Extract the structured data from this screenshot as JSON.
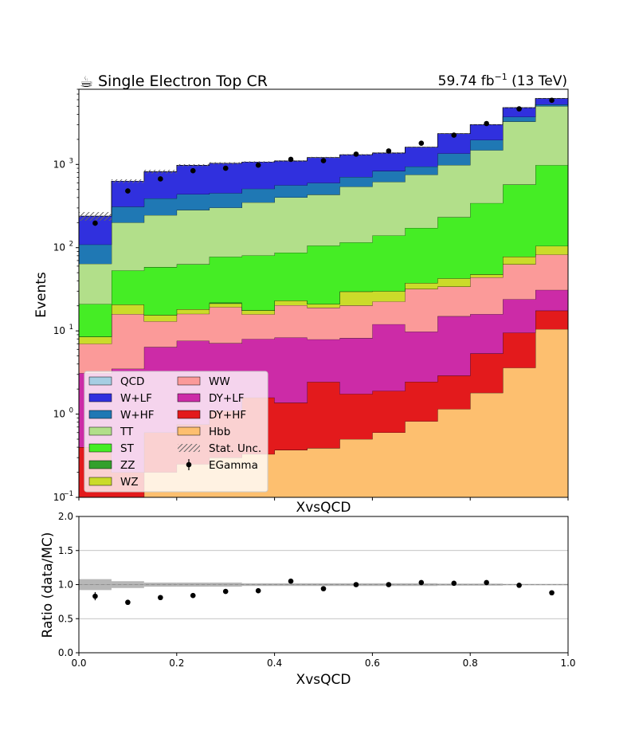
{
  "header": {
    "title_icon": "coffee-cup-icon",
    "title": "Single Electron Top CR",
    "lumi_value": "59.74",
    "lumi_unit": "fb",
    "lumi_exp": "−1",
    "energy": "(13 TeV)"
  },
  "chart_data": [
    {
      "type": "area",
      "stacked": true,
      "ylabel": "Events",
      "xlabel": "XvsQCD",
      "yscale": "log",
      "ylim": [
        0.1,
        8000
      ],
      "xlim": [
        0,
        1
      ],
      "bin_edges": [
        0,
        0.0667,
        0.1333,
        0.2,
        0.2667,
        0.3333,
        0.4,
        0.4667,
        0.5333,
        0.6,
        0.6667,
        0.7333,
        0.8,
        0.8667,
        0.9333,
        1.0
      ],
      "y_tick_labels": [
        "10",
        "10",
        "10",
        "10",
        "10"
      ],
      "y_tick_exponents": [
        "−1",
        "0",
        "1",
        "2",
        "3"
      ],
      "y_tick_values": [
        0.1,
        1,
        10,
        100,
        1000
      ],
      "series": [
        {
          "name": "Hbb",
          "color": "#fdbf6f",
          "values": [
            0.001,
            0.1,
            0.2,
            0.25,
            0.3,
            0.33,
            0.37,
            0.39,
            0.5,
            0.6,
            0.82,
            1.15,
            1.8,
            3.6,
            10.5
          ]
        },
        {
          "name": "DY+HF",
          "color": "#e31a1c",
          "values": [
            0.4,
            0.1,
            0.4,
            0.5,
            0.8,
            1.25,
            1.0,
            2.05,
            1.25,
            1.3,
            1.63,
            1.75,
            3.55,
            5.9,
            7.0
          ]
        },
        {
          "name": "DY+LF",
          "color": "#cc2ba7",
          "values": [
            2.7,
            3.3,
            5.8,
            6.85,
            6.0,
            6.4,
            6.95,
            5.46,
            6.45,
            10.1,
            7.35,
            12.1,
            10.55,
            14.5,
            13.5
          ]
        },
        {
          "name": "WW",
          "color": "#fb9a99",
          "values": [
            3.9,
            12.4,
            6.6,
            8.4,
            12.2,
            7.85,
            12.0,
            11.1,
            12.0,
            10.5,
            22.0,
            19.0,
            28.0,
            39.0,
            51.5
          ]
        },
        {
          "name": "WZ",
          "color": "#cbdb2a",
          "values": [
            1.5,
            4.8,
            2.5,
            2.2,
            2.0,
            1.8,
            2.8,
            2.0,
            9.5,
            7.5,
            5.8,
            8.7,
            3.8,
            15.0,
            22.0
          ]
        },
        {
          "name": "ZZ",
          "color": "#33a02c",
          "values": [
            0,
            0,
            0,
            0,
            0.5,
            0,
            0,
            0,
            0,
            0,
            0,
            0,
            0,
            0,
            0
          ]
        },
        {
          "name": "ST",
          "color": "#45ed25",
          "values": [
            12.5,
            32.5,
            43.0,
            45.0,
            56.0,
            63.0,
            64.0,
            85.0,
            86.0,
            110.0,
            135.0,
            190.0,
            295.0,
            495.0,
            875.0
          ]
        },
        {
          "name": "TT",
          "color": "#b2df8a",
          "values": [
            43,
            147,
            187,
            220,
            224,
            269,
            314,
            327,
            425,
            477,
            580,
            750,
            1140,
            2700,
            4030
          ]
        },
        {
          "name": "W+HF",
          "color": "#1f78b4",
          "values": [
            45,
            110,
            145,
            155,
            150,
            160,
            160,
            165,
            165,
            215,
            190,
            370,
            480,
            450,
            250
          ]
        },
        {
          "name": "W+LF",
          "color": "#3030de",
          "values": [
            130,
            320,
            430,
            540,
            580,
            560,
            540,
            610,
            600,
            540,
            670,
            990,
            1050,
            1090,
            950
          ]
        },
        {
          "name": "QCD",
          "color": "#a6cee3",
          "values": [
            0,
            0,
            0,
            0,
            0,
            0,
            0,
            0,
            0,
            0,
            0,
            0,
            0,
            0,
            0
          ]
        }
      ],
      "stat_unc_relative": [
        0.12,
        0.05,
        0.05,
        0.03,
        0.03,
        0.02,
        0.02,
        0.02,
        0.02,
        0.02,
        0.015,
        0.015,
        0.01,
        0.01,
        0.01
      ],
      "data": {
        "name": "EGamma",
        "x": [
          0.0333,
          0.1,
          0.1667,
          0.2333,
          0.3,
          0.3667,
          0.4333,
          0.5,
          0.5667,
          0.6333,
          0.7,
          0.7667,
          0.8333,
          0.9,
          0.9667
        ],
        "y": [
          197,
          480,
          670,
          840,
          900,
          980,
          1150,
          1110,
          1330,
          1450,
          1800,
          2250,
          3100,
          4650,
          5900
        ],
        "yerr": [
          14,
          22,
          26,
          29,
          30,
          31,
          34,
          33,
          36,
          38,
          42,
          47,
          56,
          68,
          77
        ]
      },
      "legend": {
        "placement": "lower-left",
        "columns": [
          [
            "QCD",
            "W+LF",
            "W+HF",
            "TT",
            "ST",
            "ZZ",
            "WZ"
          ],
          [
            "WW",
            "DY+LF",
            "DY+HF",
            "Hbb",
            "Stat. Unc.",
            "EGamma"
          ]
        ],
        "stat_unc_label": "Stat. Unc.",
        "data_label": "EGamma"
      }
    },
    {
      "type": "scatter",
      "xlabel": "XvsQCD",
      "ylabel": "Ratio (data/MC)",
      "xlim": [
        0,
        1
      ],
      "ylim": [
        0,
        2
      ],
      "grid_y": true,
      "x_ticks": [
        "0.0",
        "0.2",
        "0.4",
        "0.6",
        "0.8",
        "1.0"
      ],
      "y_ticks": [
        "0.0",
        "0.5",
        "1.0",
        "1.5",
        "2.0"
      ],
      "x": [
        0.0333,
        0.1,
        0.1667,
        0.2333,
        0.3,
        0.3667,
        0.4333,
        0.5,
        0.5667,
        0.6333,
        0.7,
        0.7667,
        0.8333,
        0.9,
        0.9667
      ],
      "y": [
        0.83,
        0.74,
        0.81,
        0.84,
        0.9,
        0.91,
        1.05,
        0.94,
        1.0,
        1.0,
        1.03,
        1.02,
        1.03,
        0.99,
        0.88
      ],
      "yerr": [
        0.06,
        0.03,
        0.02,
        0.02,
        0.02,
        0.02,
        0.02,
        0.02,
        0.02,
        0.02,
        0.02,
        0.02,
        0.02,
        0.01,
        0.01
      ],
      "unc_band_relative": [
        0.08,
        0.05,
        0.03,
        0.03,
        0.03,
        0.02,
        0.02,
        0.02,
        0.02,
        0.02,
        0.02,
        0.015,
        0.015,
        0.01,
        0.01
      ]
    }
  ]
}
